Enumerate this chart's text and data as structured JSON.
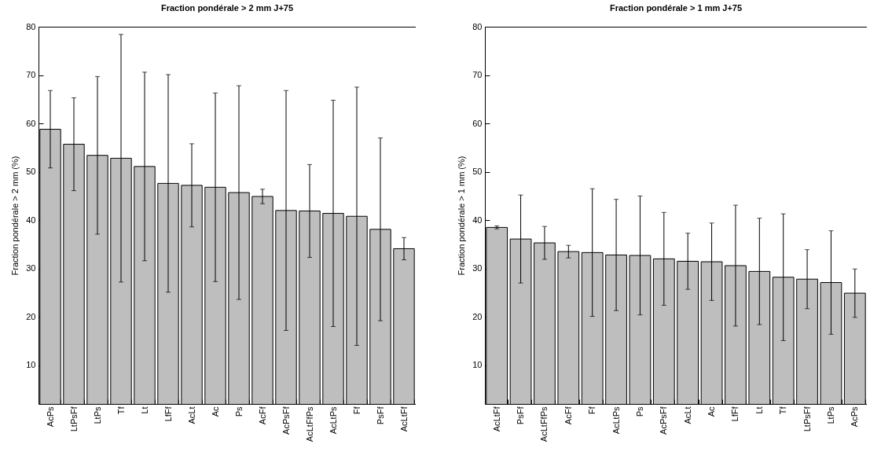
{
  "chart_data": [
    {
      "type": "bar",
      "title": "Fraction pondérale > 2 mm J+75",
      "ylabel": "Fraction pondérale > 2 mm  (%)",
      "categories": [
        "AcPs",
        "LtPsFf",
        "LtPs",
        "Tf",
        "Lt",
        "LfFf",
        "AcLt",
        "Ac",
        "Ps",
        "AcFf",
        "AcPsFf",
        "AcLtFfPs",
        "AcLtPs",
        "Ff",
        "PsFf",
        "AcLtFf"
      ],
      "color": "#bebebe",
      "values": [
        58.8,
        55.7,
        53.4,
        52.8,
        51.1,
        47.6,
        47.2,
        46.8,
        45.7,
        44.9,
        42.0,
        41.9,
        41.4,
        40.8,
        38.1,
        34.1
      ],
      "errors": [
        8.0,
        9.6,
        16.3,
        25.6,
        19.5,
        22.5,
        8.6,
        19.5,
        22.1,
        1.5,
        24.8,
        9.6,
        23.4,
        26.7,
        18.9,
        2.3
      ],
      "ylim": [
        2,
        80
      ],
      "yticks": [
        10,
        20,
        30,
        40,
        50,
        60,
        70,
        80
      ]
    },
    {
      "type": "bar",
      "title": "Fraction pondérale > 1 mm J+75",
      "ylabel": "Fraction pondérale > 1 mm  (%)",
      "categories": [
        "AcLtFf",
        "PsFf",
        "AcLtFfPs",
        "AcFf",
        "Ff",
        "AcLtPs",
        "Ps",
        "AcPsFf",
        "AcLt",
        "Ac",
        "LfFf",
        "Lt",
        "Tf",
        "LtPsFf",
        "LtPs",
        "AcPs"
      ],
      "color": "#bebebe",
      "values": [
        38.5,
        36.1,
        35.3,
        33.5,
        33.3,
        32.8,
        32.7,
        32.0,
        31.5,
        31.4,
        30.6,
        29.4,
        28.2,
        27.8,
        27.1,
        24.9
      ],
      "errors": [
        0.3,
        9.1,
        3.4,
        1.3,
        13.2,
        11.5,
        12.3,
        9.6,
        5.8,
        8.0,
        12.5,
        11.0,
        13.1,
        6.1,
        10.7,
        5.0
      ],
      "ylim": [
        2,
        80
      ],
      "yticks": [
        10,
        20,
        30,
        40,
        50,
        60,
        70,
        80
      ]
    }
  ]
}
